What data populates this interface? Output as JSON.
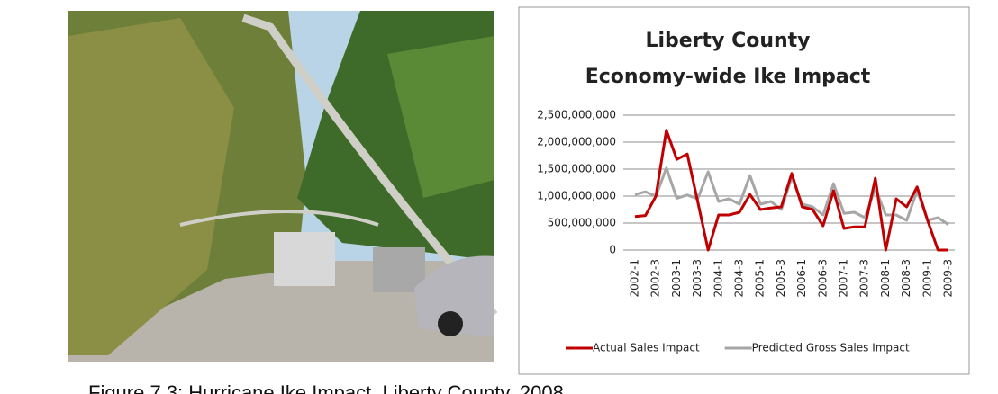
{
  "caption": "Figure 7.3: Hurricane Ike Impact, Liberty County, 2008",
  "chart_data": {
    "type": "line",
    "title": [
      "Liberty County",
      "Economy-wide Ike Impact"
    ],
    "categories": [
      "2002-1",
      null,
      "2002-3",
      null,
      "2003-1",
      null,
      "2003-3",
      null,
      "2004-1",
      null,
      "2004-3",
      null,
      "2005-1",
      null,
      "2005-3",
      null,
      "2006-1",
      null,
      "2006-3",
      null,
      "2007-1",
      null,
      "2007-3",
      null,
      "2008-1",
      null,
      "2008-3",
      null,
      "2009-1",
      null,
      "2009-3"
    ],
    "series": [
      {
        "name": "Actual Sales Impact",
        "color": "#c00000",
        "values": [
          620000000,
          640000000,
          1000000000,
          2220000000,
          1680000000,
          1780000000,
          900000000,
          0,
          650000000,
          650000000,
          700000000,
          1030000000,
          750000000,
          780000000,
          800000000,
          1420000000,
          800000000,
          750000000,
          450000000,
          1100000000,
          400000000,
          430000000,
          430000000,
          1330000000,
          0,
          950000000,
          800000000,
          1170000000,
          550000000,
          0,
          0
        ]
      },
      {
        "name": "Predicted Gross Sales Impact",
        "color": "#a6a6a6",
        "values": [
          1030000000,
          1080000000,
          1000000000,
          1520000000,
          960000000,
          1020000000,
          950000000,
          1450000000,
          900000000,
          950000000,
          850000000,
          1380000000,
          850000000,
          900000000,
          750000000,
          1350000000,
          850000000,
          800000000,
          650000000,
          1230000000,
          680000000,
          700000000,
          600000000,
          1150000000,
          650000000,
          650000000,
          550000000,
          1100000000,
          550000000,
          600000000,
          470000000
        ]
      }
    ],
    "ylim": [
      0,
      2500000000
    ],
    "yticks": [
      0,
      {
        "value": 500000000,
        "label": "500,000,000"
      },
      {
        "value": 1000000000,
        "label": "1,000,000,000"
      },
      {
        "value": 1500000000,
        "label": "1,500,000,000"
      },
      {
        "value": 2000000000,
        "label": "2,000,000,000"
      },
      {
        "value": 2500000000,
        "label": "2,500,000,000"
      }
    ],
    "grid": true,
    "legend": "bottom"
  }
}
